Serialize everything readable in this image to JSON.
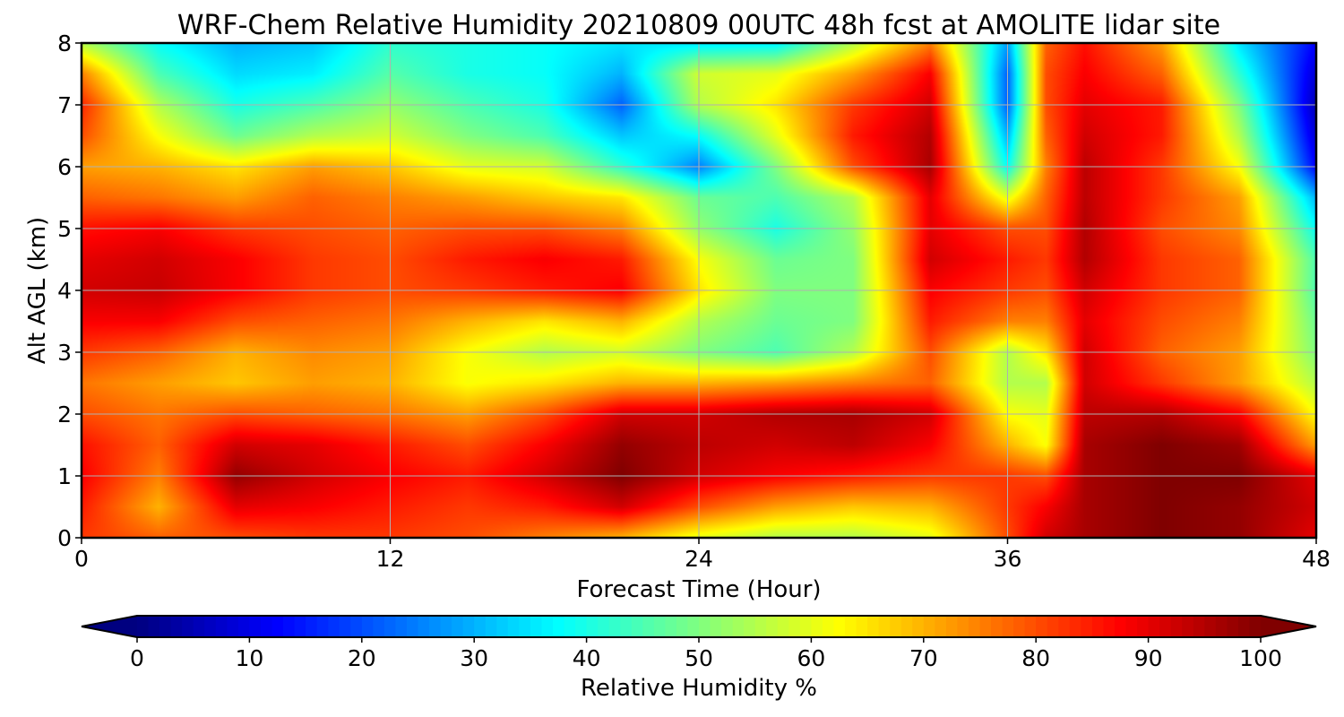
{
  "chart_data": {
    "type": "heatmap",
    "title": "WRF-Chem Relative Humidity 20210809 00UTC 48h fcst at AMOLITE lidar site",
    "xlabel": "Forecast Time (Hour)",
    "ylabel": "Alt AGL (km)",
    "xlim": [
      0,
      48
    ],
    "ylim": [
      0,
      8
    ],
    "x_ticks": [
      0,
      12,
      24,
      36,
      48
    ],
    "y_ticks": [
      0,
      1,
      2,
      3,
      4,
      5,
      6,
      7,
      8
    ],
    "grid": true,
    "colormap": "jet",
    "colorbar": {
      "label": "Relative Humidity %",
      "min": 0,
      "max": 100,
      "ticks": [
        0,
        10,
        20,
        30,
        40,
        50,
        60,
        70,
        80,
        90,
        100
      ],
      "extend": "both",
      "orientation": "horizontal"
    },
    "x": [
      0,
      3,
      6,
      9,
      12,
      15,
      18,
      21,
      24,
      27,
      30,
      33,
      36,
      37.5,
      39,
      42,
      45,
      48
    ],
    "y": [
      0,
      0.5,
      1,
      1.5,
      2,
      2.5,
      3,
      3.5,
      4,
      4.5,
      5,
      5.5,
      6,
      6.5,
      7,
      7.5,
      8
    ],
    "z": [
      [
        82,
        78,
        80,
        82,
        82,
        80,
        75,
        70,
        60,
        55,
        55,
        60,
        80,
        92,
        96,
        100,
        98,
        90
      ],
      [
        85,
        70,
        90,
        88,
        85,
        82,
        85,
        92,
        80,
        72,
        68,
        70,
        82,
        88,
        96,
        100,
        98,
        92
      ],
      [
        88,
        75,
        98,
        92,
        88,
        85,
        92,
        100,
        92,
        88,
        85,
        82,
        82,
        80,
        96,
        100,
        100,
        90
      ],
      [
        86,
        78,
        92,
        90,
        85,
        80,
        88,
        98,
        94,
        92,
        94,
        88,
        70,
        62,
        96,
        100,
        97,
        72
      ],
      [
        80,
        76,
        80,
        78,
        76,
        72,
        80,
        92,
        92,
        95,
        96,
        92,
        62,
        60,
        94,
        95,
        88,
        62
      ],
      [
        76,
        72,
        68,
        72,
        70,
        62,
        65,
        70,
        70,
        72,
        75,
        78,
        55,
        55,
        92,
        82,
        72,
        55
      ],
      [
        82,
        78,
        70,
        74,
        72,
        62,
        55,
        58,
        50,
        45,
        55,
        80,
        55,
        65,
        92,
        78,
        72,
        50
      ],
      [
        88,
        88,
        80,
        78,
        76,
        70,
        65,
        70,
        55,
        48,
        50,
        85,
        75,
        75,
        90,
        80,
        75,
        48
      ],
      [
        92,
        93,
        88,
        82,
        80,
        82,
        85,
        88,
        65,
        50,
        50,
        88,
        82,
        80,
        92,
        82,
        78,
        45
      ],
      [
        90,
        92,
        88,
        82,
        80,
        85,
        88,
        85,
        62,
        48,
        50,
        92,
        85,
        82,
        95,
        82,
        78,
        45
      ],
      [
        86,
        88,
        82,
        80,
        78,
        80,
        80,
        75,
        52,
        40,
        52,
        90,
        80,
        80,
        95,
        80,
        74,
        38
      ],
      [
        78,
        76,
        72,
        78,
        75,
        72,
        68,
        65,
        48,
        45,
        55,
        90,
        60,
        78,
        94,
        82,
        72,
        30
      ],
      [
        72,
        70,
        65,
        72,
        68,
        60,
        58,
        42,
        25,
        50,
        80,
        96,
        38,
        75,
        94,
        82,
        62,
        12
      ],
      [
        80,
        62,
        48,
        55,
        58,
        50,
        45,
        32,
        38,
        60,
        85,
        95,
        30,
        78,
        92,
        85,
        55,
        8
      ],
      [
        84,
        55,
        40,
        45,
        52,
        45,
        40,
        22,
        55,
        65,
        82,
        92,
        22,
        80,
        90,
        85,
        50,
        5
      ],
      [
        75,
        45,
        34,
        36,
        46,
        40,
        38,
        30,
        58,
        60,
        72,
        88,
        22,
        80,
        88,
        78,
        42,
        8
      ],
      [
        55,
        38,
        30,
        32,
        42,
        40,
        38,
        35,
        35,
        36,
        55,
        75,
        28,
        78,
        86,
        72,
        35,
        12
      ]
    ]
  }
}
